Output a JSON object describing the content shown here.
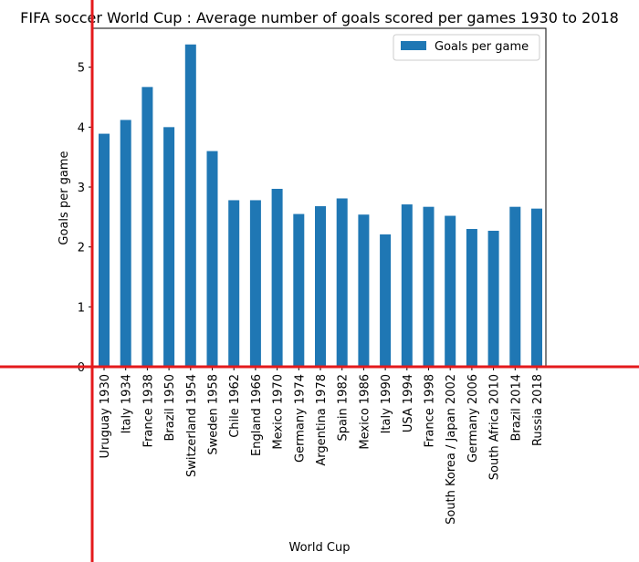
{
  "chart_data": {
    "type": "bar",
    "title": "FIFA soccer World Cup : Average number of goals scored per games 1930 to 2018",
    "xlabel": "World Cup",
    "ylabel": "Goals per game",
    "categories": [
      "Uruguay 1930",
      "Italy 1934",
      "France 1938",
      "Brazil 1950",
      "Switzerland 1954",
      "Sweden 1958",
      "Chile 1962",
      "England 1966",
      "Mexico 1970",
      "Germany 1974",
      "Argentina 1978",
      "Spain 1982",
      "Mexico 1986",
      "Italy 1990",
      "USA 1994",
      "France 1998",
      "South Korea / Japan 2002",
      "Germany 2006",
      "South Africa 2010",
      "Brazil 2014",
      "Russia 2018"
    ],
    "series": [
      {
        "name": "Goals per game",
        "color": "#1f77b4",
        "values": [
          3.89,
          4.12,
          4.67,
          4.0,
          5.38,
          3.6,
          2.78,
          2.78,
          2.97,
          2.55,
          2.68,
          2.81,
          2.54,
          2.21,
          2.71,
          2.67,
          2.52,
          2.3,
          2.27,
          2.67,
          2.64
        ]
      }
    ],
    "yticks": [
      "0",
      "1",
      "2",
      "3",
      "4",
      "5"
    ],
    "ylim": [
      0,
      5.65
    ],
    "grid": false,
    "legend_position": "top-right",
    "overlay_lines_color": "#e41a1c"
  }
}
